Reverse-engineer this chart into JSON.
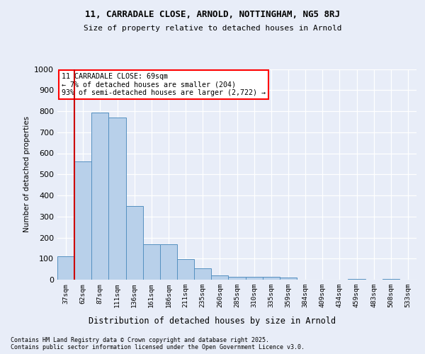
{
  "title1": "11, CARRADALE CLOSE, ARNOLD, NOTTINGHAM, NG5 8RJ",
  "title2": "Size of property relative to detached houses in Arnold",
  "xlabel": "Distribution of detached houses by size in Arnold",
  "ylabel": "Number of detached properties",
  "categories": [
    "37sqm",
    "62sqm",
    "87sqm",
    "111sqm",
    "136sqm",
    "161sqm",
    "186sqm",
    "211sqm",
    "235sqm",
    "260sqm",
    "285sqm",
    "310sqm",
    "335sqm",
    "359sqm",
    "384sqm",
    "409sqm",
    "434sqm",
    "459sqm",
    "483sqm",
    "508sqm",
    "533sqm"
  ],
  "values": [
    112,
    562,
    793,
    770,
    350,
    168,
    168,
    98,
    55,
    20,
    14,
    12,
    12,
    10,
    0,
    0,
    0,
    5,
    0,
    5,
    0
  ],
  "bar_color": "#b8d0ea",
  "bar_edge_color": "#5590c0",
  "vline_color": "#cc0000",
  "vline_x": 0.5,
  "annotation_text": "11 CARRADALE CLOSE: 69sqm\n← 7% of detached houses are smaller (204)\n93% of semi-detached houses are larger (2,722) →",
  "ylim": [
    0,
    1000
  ],
  "yticks": [
    0,
    100,
    200,
    300,
    400,
    500,
    600,
    700,
    800,
    900,
    1000
  ],
  "footer1": "Contains HM Land Registry data © Crown copyright and database right 2025.",
  "footer2": "Contains public sector information licensed under the Open Government Licence v3.0.",
  "bg_color": "#e8edf8"
}
